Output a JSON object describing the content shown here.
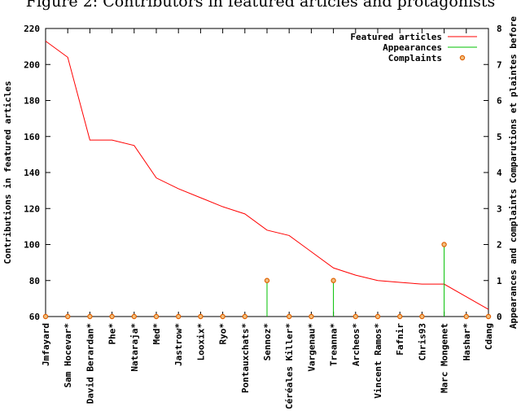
{
  "caption": "Figure 2: Contributors in featured articles and protagonists",
  "chart_data": {
    "type": "line",
    "categories": [
      "Jmfayard",
      "Sam Hocevar*",
      "David Berardan*",
      "Phe*",
      "Nataraja*",
      "Med*",
      "Jastrow*",
      "Looxix*",
      "Ryo*",
      "Pontauxchats*",
      "Sennoz*",
      "Céréales Killer*",
      "Vargenau*",
      "Treanna*",
      "Archeos*",
      "Vincent Ramos*",
      "Fafnir",
      "Chris93",
      "Marc Mongenet",
      "Hashar*",
      "Cdang"
    ],
    "ylabel": "Contributions in featured articles",
    "y2label": "Appearances and complaints  Comparutions et plaintes before",
    "ylim": [
      60,
      220
    ],
    "y2lim": [
      0,
      8
    ],
    "yticks": [
      60,
      80,
      100,
      120,
      140,
      160,
      180,
      200,
      220
    ],
    "y2ticks": [
      0,
      1,
      2,
      3,
      4,
      5,
      6,
      7,
      8
    ],
    "legend_position": "top-right",
    "grid": false,
    "series": [
      {
        "name": "Featured articles",
        "axis": "left",
        "style": "line",
        "color": "#ff0000",
        "values": [
          213,
          204,
          158,
          158,
          155,
          137,
          131,
          126,
          121,
          117,
          108,
          105,
          96,
          87,
          83,
          80,
          79,
          78,
          78,
          71,
          64
        ]
      },
      {
        "name": "Appearances",
        "axis": "right",
        "style": "impulses",
        "color": "#00c000",
        "values": [
          0,
          0,
          0,
          0,
          0,
          0,
          0,
          0,
          0,
          0,
          1,
          0,
          0,
          1,
          0,
          0,
          0,
          0,
          2,
          0,
          0
        ]
      },
      {
        "name": "Complaints",
        "axis": "right",
        "style": "points",
        "color": "#e06000",
        "values": [
          0,
          0,
          0,
          0,
          0,
          0,
          0,
          0,
          0,
          0,
          1,
          0,
          0,
          1,
          0,
          0,
          0,
          0,
          2,
          0,
          0
        ]
      }
    ]
  }
}
